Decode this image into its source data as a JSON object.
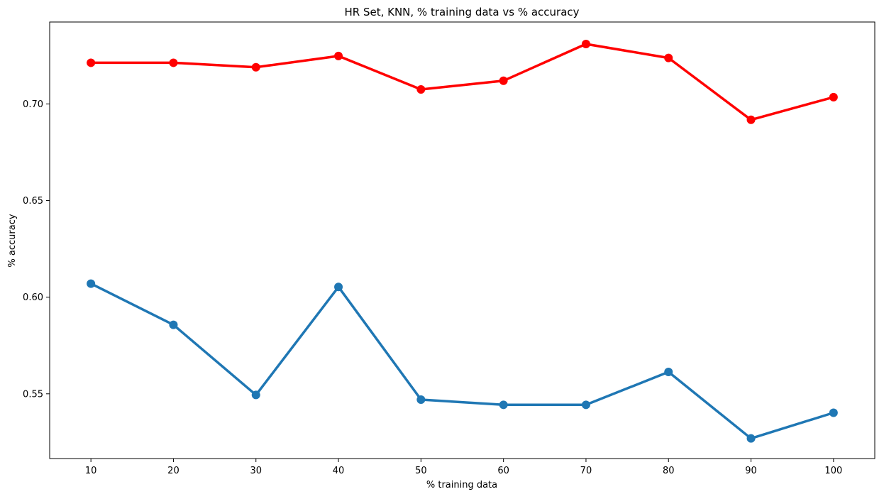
{
  "chart_data": {
    "type": "line",
    "title": "HR Set, KNN, % training data vs % accuracy",
    "xlabel": "% training data",
    "ylabel": "% accuracy",
    "categories": [
      "10",
      "20",
      "30",
      "40",
      "50",
      "60",
      "70",
      "80",
      "90",
      "100"
    ],
    "y_ticks": [
      0.55,
      0.6,
      0.65,
      0.7
    ],
    "y_tick_labels": [
      "0.55",
      "0.60",
      "0.65",
      "0.70"
    ],
    "ylim": [
      0.5165,
      0.7424
    ],
    "grid": false,
    "legend": false,
    "series": [
      {
        "color": "#ff0000",
        "values": [
          0.7213,
          0.7213,
          0.719,
          0.7248,
          0.7075,
          0.712,
          0.731,
          0.7238,
          0.6918,
          0.7035
        ]
      },
      {
        "color": "#1f77b4",
        "values": [
          0.607,
          0.5857,
          0.5494,
          0.6053,
          0.547,
          0.5443,
          0.5443,
          0.5613,
          0.5269,
          0.5402
        ]
      }
    ]
  }
}
